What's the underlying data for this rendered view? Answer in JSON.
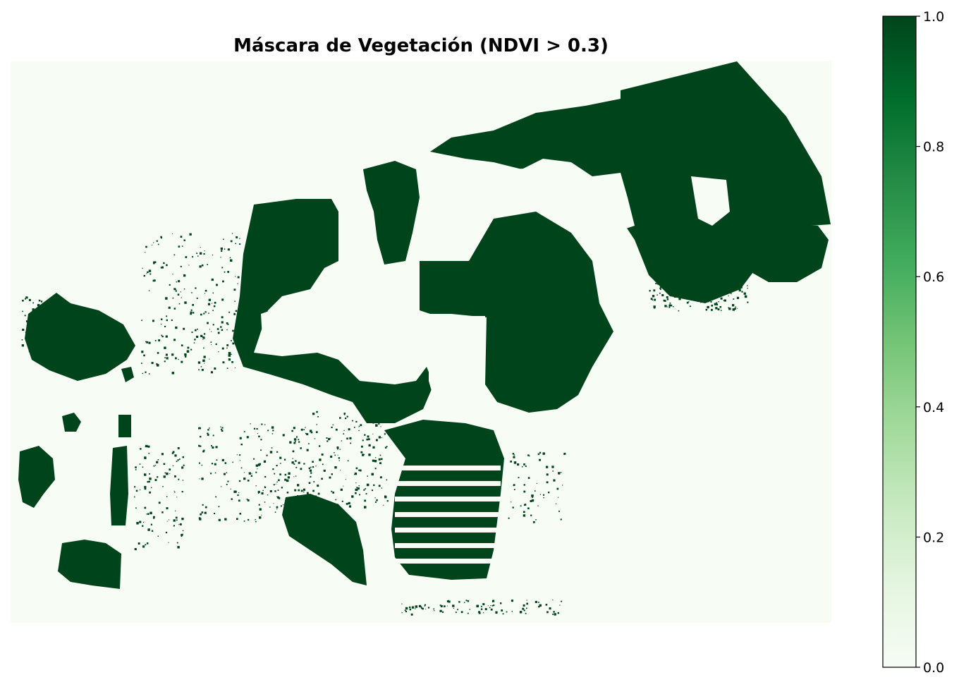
{
  "chart_data": {
    "type": "heatmap",
    "title": "Máscara de Vegetación (NDVI > 0.3)",
    "xlabel": "",
    "ylabel": "",
    "axes_visible": false,
    "colormap": "Greens",
    "color_range": [
      0.0,
      1.0
    ],
    "colors": {
      "low": "#f7fcf5",
      "high": "#00441b",
      "stops": [
        "#f7fcf5",
        "#e5f5e0",
        "#c7e9c0",
        "#a1d99b",
        "#74c476",
        "#41ab5d",
        "#238b45",
        "#006d2c",
        "#00441b"
      ]
    },
    "values_present": [
      0,
      1
    ],
    "threshold": 0.3,
    "colorbar": {
      "position": "right",
      "ticks": [
        {
          "value": 0.0,
          "label": "0.0"
        },
        {
          "value": 0.2,
          "label": "0.2"
        },
        {
          "value": 0.4,
          "label": "0.4"
        },
        {
          "value": 0.6,
          "label": "0.6"
        },
        {
          "value": 0.8,
          "label": "0.8"
        },
        {
          "value": 1.0,
          "label": "1.0"
        }
      ]
    }
  }
}
